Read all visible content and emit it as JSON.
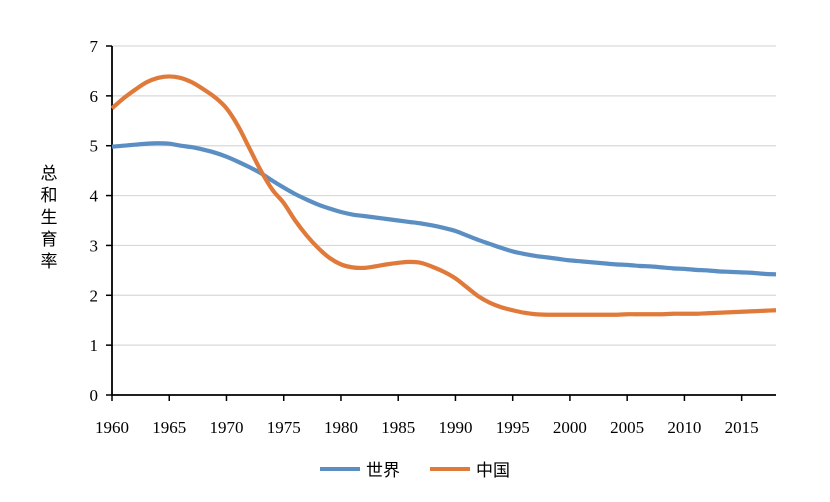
{
  "chart_data": {
    "type": "line",
    "title": "",
    "xlabel": "",
    "ylabel": "总和生育率",
    "xlim": [
      1960,
      2018
    ],
    "ylim": [
      0,
      7
    ],
    "grid": true,
    "legend_position": "bottom",
    "x_ticks": [
      "1960",
      "1965",
      "1970",
      "1975",
      "1980",
      "1985",
      "1990",
      "1995",
      "2000",
      "2005",
      "2010",
      "2015"
    ],
    "y_ticks": [
      "0",
      "1",
      "2",
      "3",
      "4",
      "5",
      "6",
      "7"
    ],
    "x": [
      1960,
      1961,
      1962,
      1963,
      1964,
      1965,
      1966,
      1967,
      1968,
      1969,
      1970,
      1971,
      1972,
      1973,
      1974,
      1975,
      1976,
      1977,
      1978,
      1979,
      1980,
      1981,
      1982,
      1983,
      1984,
      1985,
      1986,
      1987,
      1988,
      1989,
      1990,
      1991,
      1992,
      1993,
      1994,
      1995,
      1996,
      1997,
      1998,
      1999,
      2000,
      2001,
      2002,
      2003,
      2004,
      2005,
      2006,
      2007,
      2008,
      2009,
      2010,
      2011,
      2012,
      2013,
      2014,
      2015,
      2016,
      2017,
      2018
    ],
    "series": [
      {
        "name": "世界",
        "color": "#5b8fc4",
        "values": [
          4.98,
          5.0,
          5.02,
          5.04,
          5.05,
          5.04,
          5.0,
          4.97,
          4.92,
          4.86,
          4.78,
          4.68,
          4.57,
          4.45,
          4.3,
          4.16,
          4.03,
          3.92,
          3.82,
          3.74,
          3.67,
          3.62,
          3.59,
          3.56,
          3.53,
          3.5,
          3.47,
          3.44,
          3.4,
          3.35,
          3.29,
          3.2,
          3.11,
          3.03,
          2.95,
          2.88,
          2.83,
          2.79,
          2.76,
          2.73,
          2.7,
          2.68,
          2.66,
          2.64,
          2.62,
          2.61,
          2.59,
          2.58,
          2.56,
          2.54,
          2.53,
          2.51,
          2.5,
          2.48,
          2.47,
          2.46,
          2.45,
          2.43,
          2.42
        ]
      },
      {
        "name": "中国",
        "color": "#e07a3a",
        "values": [
          5.75,
          5.95,
          6.12,
          6.27,
          6.36,
          6.39,
          6.36,
          6.27,
          6.13,
          5.97,
          5.75,
          5.4,
          4.95,
          4.5,
          4.12,
          3.85,
          3.5,
          3.2,
          2.95,
          2.75,
          2.62,
          2.56,
          2.55,
          2.58,
          2.62,
          2.65,
          2.67,
          2.65,
          2.57,
          2.47,
          2.34,
          2.16,
          1.98,
          1.85,
          1.76,
          1.7,
          1.65,
          1.62,
          1.61,
          1.61,
          1.61,
          1.61,
          1.61,
          1.61,
          1.61,
          1.62,
          1.62,
          1.62,
          1.62,
          1.63,
          1.63,
          1.63,
          1.64,
          1.65,
          1.66,
          1.67,
          1.68,
          1.69,
          1.7
        ]
      }
    ]
  }
}
